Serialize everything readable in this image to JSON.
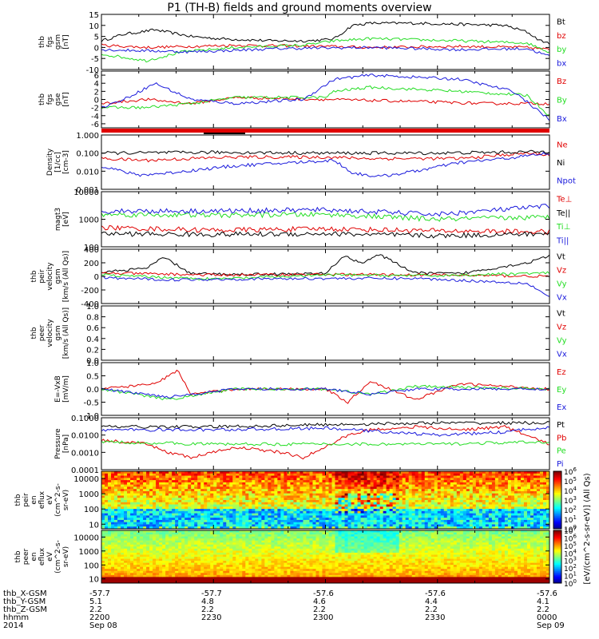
{
  "title": "P1 (TH-B) fields and ground moments overview",
  "colors": {
    "black": "#000000",
    "red": "#e00000",
    "green": "#22dd22",
    "blue": "#1a1adc"
  },
  "chart_data": [
    {
      "type": "line",
      "panel_id": "fgs_gsm",
      "ylabel_lines": [
        "thb",
        "fgs",
        "gsm",
        "[nT]"
      ],
      "ylim": [
        -10,
        15
      ],
      "yticks": [
        "15",
        "10",
        "5",
        "0",
        "-5",
        "-10"
      ],
      "series": [
        {
          "name": "Bt",
          "color": "black",
          "x": [
            0,
            0.05,
            0.12,
            0.2,
            0.26,
            0.32,
            0.38,
            0.42,
            0.46,
            0.5,
            0.52,
            0.56,
            0.6,
            0.7,
            0.8,
            0.9,
            0.95,
            0.98,
            1
          ],
          "y": [
            3,
            6,
            8,
            5,
            4,
            3.5,
            3,
            3,
            3,
            3.5,
            4,
            10,
            11,
            11,
            10.5,
            10,
            7,
            3,
            2
          ]
        },
        {
          "name": "bz",
          "color": "red",
          "x": [
            0,
            0.1,
            0.2,
            0.3,
            0.5,
            0.6,
            0.8,
            0.95,
            1
          ],
          "y": [
            1,
            0,
            0.5,
            1,
            0.5,
            0,
            0.5,
            0,
            -1
          ]
        },
        {
          "name": "by",
          "color": "green",
          "x": [
            0,
            0.1,
            0.18,
            0.3,
            0.45,
            0.52,
            0.6,
            0.8,
            0.95,
            1
          ],
          "y": [
            -3,
            -6,
            -2,
            0,
            1,
            3,
            4,
            3,
            2,
            -2
          ]
        },
        {
          "name": "bx",
          "color": "blue",
          "x": [
            0,
            0.2,
            0.4,
            0.6,
            0.8,
            0.95,
            1
          ],
          "y": [
            -1,
            -2,
            -0.5,
            0,
            -1,
            -0.5,
            -4
          ]
        }
      ]
    },
    {
      "type": "line",
      "panel_id": "fgs_gse",
      "ylabel_lines": [
        "thb",
        "fgs",
        "gse",
        "[nT]"
      ],
      "ylim": [
        -7,
        7
      ],
      "yticks": [
        "6",
        "4",
        "2",
        "0",
        "-2",
        "-4",
        "-6"
      ],
      "series": [
        {
          "name": "Bz",
          "color": "red",
          "x": [
            0,
            0.1,
            0.2,
            0.3,
            0.5,
            0.7,
            0.85,
            1
          ],
          "y": [
            -1,
            0,
            -1,
            0.5,
            0,
            -0.5,
            -1,
            -1
          ]
        },
        {
          "name": "By",
          "color": "green",
          "x": [
            0,
            0.1,
            0.2,
            0.3,
            0.5,
            0.52,
            0.6,
            0.8,
            0.95,
            1
          ],
          "y": [
            -2,
            -2,
            -1,
            0.5,
            0.5,
            2,
            3,
            2,
            1,
            -4
          ]
        },
        {
          "name": "Bx",
          "color": "blue",
          "x": [
            0,
            0.05,
            0.12,
            0.2,
            0.3,
            0.45,
            0.52,
            0.6,
            0.8,
            0.92,
            1
          ],
          "y": [
            -2,
            0,
            4,
            0,
            -1,
            0,
            5,
            6,
            5,
            2,
            -5
          ]
        }
      ]
    },
    {
      "type": "line",
      "panel_id": "density",
      "ylabel_lines": [
        "Density",
        "[1/cc]",
        "[cm-3]"
      ],
      "yscale": "log",
      "ylim": [
        0.001,
        1
      ],
      "yticks": [
        "1.000",
        "0.100",
        "0.010",
        "0.001"
      ],
      "series": [
        {
          "name": "Ne",
          "color": "red",
          "x": [
            0,
            0.1,
            0.2,
            0.3,
            0.5,
            0.6,
            0.8,
            0.95,
            1
          ],
          "y": [
            0.05,
            0.04,
            0.05,
            0.06,
            0.06,
            0.05,
            0.05,
            0.1,
            0.08
          ]
        },
        {
          "name": "Ni",
          "color": "black",
          "x": [
            0,
            0.25,
            0.5,
            0.75,
            1
          ],
          "y": [
            0.1,
            0.11,
            0.1,
            0.1,
            0.12
          ]
        },
        {
          "name": "Npot",
          "color": "blue",
          "x": [
            0,
            0.08,
            0.15,
            0.3,
            0.52,
            0.56,
            0.62,
            0.7,
            0.8,
            0.9,
            1
          ],
          "y": [
            0.02,
            0.006,
            0.008,
            0.02,
            0.04,
            0.008,
            0.005,
            0.01,
            0.03,
            0.05,
            0.1
          ]
        }
      ]
    },
    {
      "type": "line",
      "panel_id": "temperature",
      "ylabel_lines": [
        "magt3",
        "[eV]"
      ],
      "yscale": "log",
      "ylim": [
        100,
        10000
      ],
      "yticks": [
        "10000",
        "1000",
        "100"
      ],
      "series": [
        {
          "name": "Te⊥",
          "color": "red",
          "x": [
            0,
            0.25,
            0.5,
            0.75,
            1
          ],
          "y": [
            500,
            400,
            450,
            380,
            350
          ]
        },
        {
          "name": "Te||",
          "color": "black",
          "x": [
            0,
            0.25,
            0.5,
            0.75,
            1
          ],
          "y": [
            300,
            280,
            300,
            250,
            300
          ]
        },
        {
          "name": "Ti⊥",
          "color": "green",
          "x": [
            0,
            0.25,
            0.5,
            0.75,
            1
          ],
          "y": [
            1500,
            1400,
            1500,
            1000,
            1200
          ]
        },
        {
          "name": "Ti||",
          "color": "blue",
          "x": [
            0,
            0.25,
            0.5,
            0.75,
            1
          ],
          "y": [
            2000,
            2000,
            2200,
            1500,
            3000
          ]
        }
      ]
    },
    {
      "type": "line",
      "panel_id": "velocity_gsm",
      "ylabel_lines": [
        "thb",
        "peir",
        "velocity",
        "gsm",
        "[km/s (All Qs)]"
      ],
      "ylim": [
        -400,
        400
      ],
      "yticks": [
        "400",
        "200",
        "0",
        "-200",
        "-400"
      ],
      "series": [
        {
          "name": "Vt",
          "color": "black",
          "x": [
            0,
            0.1,
            0.14,
            0.2,
            0.3,
            0.5,
            0.54,
            0.58,
            0.62,
            0.7,
            0.8,
            0.95,
            1
          ],
          "y": [
            60,
            120,
            280,
            40,
            30,
            40,
            300,
            200,
            320,
            50,
            40,
            200,
            300
          ]
        },
        {
          "name": "Vz",
          "color": "red",
          "x": [
            0,
            0.25,
            0.5,
            0.75,
            1
          ],
          "y": [
            50,
            20,
            30,
            20,
            0
          ]
        },
        {
          "name": "Vy",
          "color": "green",
          "x": [
            0,
            0.25,
            0.5,
            0.75,
            1
          ],
          "y": [
            20,
            -40,
            20,
            10,
            50
          ]
        },
        {
          "name": "Vx",
          "color": "blue",
          "x": [
            0,
            0.15,
            0.3,
            0.5,
            0.7,
            0.95,
            1
          ],
          "y": [
            -20,
            -50,
            -40,
            -30,
            -30,
            -100,
            -300
          ]
        }
      ]
    },
    {
      "type": "line",
      "panel_id": "velocity_peer",
      "ylabel_lines": [
        "thb",
        "peer",
        "velocity",
        "gsm",
        "[km/s (All Qs)]"
      ],
      "ylim": [
        0,
        1
      ],
      "yticks": [
        "1.0",
        "0.8",
        "0.6",
        "0.4",
        "0.2",
        "0.0"
      ],
      "series": [
        {
          "name": "Vt",
          "color": "black",
          "x": [],
          "y": []
        },
        {
          "name": "Vz",
          "color": "red",
          "x": [],
          "y": []
        },
        {
          "name": "Vy",
          "color": "green",
          "x": [],
          "y": []
        },
        {
          "name": "Vx",
          "color": "blue",
          "x": [],
          "y": []
        }
      ]
    },
    {
      "type": "line",
      "panel_id": "efield",
      "ylabel_lines": [
        "E=-VxB",
        "[mV/m]"
      ],
      "ylim": [
        -1,
        1
      ],
      "yticks": [
        "1.0",
        "0.5",
        "0.0",
        "-0.5",
        "-1.0"
      ],
      "series": [
        {
          "name": "Ez",
          "color": "red",
          "x": [
            0,
            0.12,
            0.17,
            0.2,
            0.3,
            0.5,
            0.55,
            0.6,
            0.7,
            0.8,
            1
          ],
          "y": [
            0,
            0.2,
            0.7,
            -0.2,
            0,
            0,
            -0.5,
            0.3,
            -0.4,
            0.2,
            0
          ]
        },
        {
          "name": "Ey",
          "color": "green",
          "x": [
            0,
            0.15,
            0.3,
            0.5,
            0.6,
            0.7,
            1
          ],
          "y": [
            0,
            -0.4,
            0,
            0,
            -0.2,
            0.1,
            0
          ]
        },
        {
          "name": "Ex",
          "color": "blue",
          "x": [
            0,
            0.15,
            0.3,
            0.5,
            0.6,
            0.7,
            1
          ],
          "y": [
            0,
            -0.3,
            0,
            0,
            -0.2,
            0,
            0
          ]
        }
      ]
    },
    {
      "type": "line",
      "panel_id": "pressure",
      "ylabel_lines": [
        "Pressure",
        "[nPa]"
      ],
      "yscale": "log",
      "ylim": [
        0.0001,
        0.1
      ],
      "yticks": [
        "0.1000",
        "0.0100",
        "0.0010",
        "0.0001"
      ],
      "series": [
        {
          "name": "Pt",
          "color": "black",
          "x": [
            0,
            0.25,
            0.5,
            0.75,
            1
          ],
          "y": [
            0.03,
            0.03,
            0.04,
            0.05,
            0.05
          ]
        },
        {
          "name": "Pb",
          "color": "red",
          "x": [
            0,
            0.1,
            0.15,
            0.2,
            0.3,
            0.4,
            0.45,
            0.5,
            0.55,
            0.6,
            0.7,
            0.8,
            0.9,
            1
          ],
          "y": [
            0.005,
            0.003,
            0.001,
            0.0005,
            0.002,
            0.001,
            0.0005,
            0.002,
            0.01,
            0.02,
            0.03,
            0.02,
            0.03,
            0.003
          ]
        },
        {
          "name": "Pe",
          "color": "green",
          "x": [
            0,
            0.25,
            0.5,
            0.75,
            1
          ],
          "y": [
            0.004,
            0.003,
            0.003,
            0.003,
            0.004
          ]
        },
        {
          "name": "Pi",
          "color": "blue",
          "x": [
            0,
            0.25,
            0.5,
            0.75,
            0.9,
            1
          ],
          "y": [
            0.02,
            0.02,
            0.025,
            0.01,
            0.015,
            0.03
          ]
        }
      ]
    },
    {
      "type": "heatmap",
      "panel_id": "peir_spectrogram",
      "ylabel_lines": [
        "thb",
        "peir",
        "en",
        "eflux",
        "eV",
        "(cm^2-s-",
        "sr-eV)"
      ],
      "yscale": "log",
      "ylim": [
        5,
        30000
      ],
      "yticks": [
        "10000",
        "1000",
        "100",
        "10"
      ],
      "colorbar": {
        "label": "[eV/(cm^2-s-sr-eV)] (All Qs)",
        "range": [
          1,
          1000000
        ],
        "ticks": [
          "10^6",
          "10^5",
          "10^4",
          "10^3",
          "10^2",
          "10^1",
          "10^0"
        ]
      }
    },
    {
      "type": "heatmap",
      "panel_id": "peer_spectrogram",
      "ylabel_lines": [
        "thb",
        "peer",
        "en",
        "eflux",
        "eV",
        "(cm^2-s-",
        "sr-eV)"
      ],
      "yscale": "log",
      "ylim": [
        5,
        30000
      ],
      "yticks": [
        "10000",
        "1000",
        "100",
        "10"
      ],
      "colorbar": {
        "label": "[eV/(cm^2-s-sr-eV)] (All Qs)",
        "range": [
          1,
          10000000
        ],
        "ticks": [
          "10^7",
          "10^6",
          "10^5",
          "10^4",
          "10^3",
          "10^2",
          "10^1",
          "10^0"
        ]
      }
    }
  ],
  "ephemeris": {
    "labels": [
      "thb_X-GSM",
      "thb_Y-GSM",
      "thb_Z-GSM",
      "hhmm",
      "2014"
    ],
    "columns": [
      [
        "-57.7",
        "5.1",
        "2.2",
        "2200",
        "Sep 08"
      ],
      [
        "-57.7",
        "4.8",
        "2.2",
        "2230",
        ""
      ],
      [
        "-57.6",
        "4.6",
        "2.2",
        "2300",
        ""
      ],
      [
        "-57.6",
        "4.4",
        "2.2",
        "2330",
        ""
      ],
      [
        "-57.6",
        "4.1",
        "2.2",
        "0000",
        "Sep 09"
      ]
    ]
  }
}
